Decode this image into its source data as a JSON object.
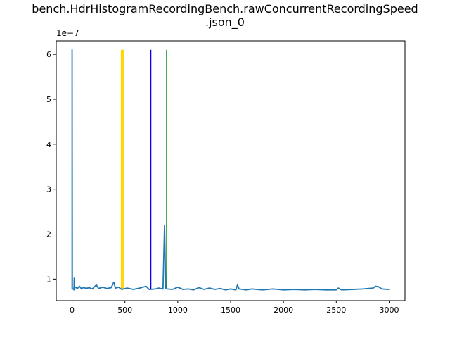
{
  "chart_data": {
    "type": "line",
    "title_line1": "bench.HdrHistogramRecordingBench.rawConcurrentRecordingSpeed",
    "title_line2": ".json_0",
    "xlabel": "",
    "ylabel": "",
    "y_offset_label": "1e−7",
    "xlim": [
      -150,
      3150
    ],
    "ylim": [
      0.52,
      6.3
    ],
    "x_ticks": [
      0,
      500,
      1000,
      1500,
      2000,
      2500,
      3000
    ],
    "y_ticks": [
      1,
      2,
      3,
      4,
      5,
      6
    ],
    "grid": false,
    "series": [
      {
        "color": "#1f77b4",
        "points": [
          [
            0,
            0.77
          ],
          [
            0,
            6.1
          ],
          [
            2,
            0.78
          ],
          [
            10,
            0.78
          ],
          [
            18,
            0.76
          ],
          [
            20,
            1.02
          ],
          [
            24,
            0.8
          ],
          [
            35,
            0.82
          ],
          [
            50,
            0.79
          ],
          [
            70,
            0.84
          ],
          [
            90,
            0.78
          ],
          [
            110,
            0.82
          ],
          [
            130,
            0.79
          ],
          [
            160,
            0.81
          ],
          [
            190,
            0.78
          ],
          [
            230,
            0.87
          ],
          [
            250,
            0.79
          ],
          [
            290,
            0.82
          ],
          [
            330,
            0.79
          ],
          [
            370,
            0.81
          ],
          [
            395,
            0.93
          ],
          [
            410,
            0.8
          ],
          [
            440,
            0.82
          ],
          [
            470,
            0.77
          ],
          [
            520,
            0.8
          ],
          [
            580,
            0.77
          ],
          [
            640,
            0.8
          ],
          [
            700,
            0.84
          ],
          [
            730,
            0.77
          ],
          [
            790,
            0.78
          ],
          [
            820,
            0.8
          ],
          [
            860,
            0.78
          ],
          [
            875,
            2.2
          ],
          [
            885,
            0.8
          ],
          [
            900,
            0.78
          ],
          [
            950,
            0.77
          ],
          [
            1000,
            0.82
          ],
          [
            1050,
            0.77
          ],
          [
            1100,
            0.78
          ],
          [
            1150,
            0.76
          ],
          [
            1200,
            0.81
          ],
          [
            1250,
            0.77
          ],
          [
            1300,
            0.8
          ],
          [
            1350,
            0.77
          ],
          [
            1400,
            0.79
          ],
          [
            1450,
            0.76
          ],
          [
            1500,
            0.78
          ],
          [
            1550,
            0.76
          ],
          [
            1565,
            0.87
          ],
          [
            1580,
            0.78
          ],
          [
            1650,
            0.76
          ],
          [
            1700,
            0.78
          ],
          [
            1800,
            0.76
          ],
          [
            1900,
            0.78
          ],
          [
            2000,
            0.76
          ],
          [
            2100,
            0.77
          ],
          [
            2200,
            0.76
          ],
          [
            2300,
            0.77
          ],
          [
            2400,
            0.76
          ],
          [
            2500,
            0.76
          ],
          [
            2520,
            0.8
          ],
          [
            2550,
            0.76
          ],
          [
            2650,
            0.77
          ],
          [
            2750,
            0.78
          ],
          [
            2800,
            0.79
          ],
          [
            2850,
            0.8
          ],
          [
            2870,
            0.84
          ],
          [
            2900,
            0.83
          ],
          [
            2930,
            0.78
          ],
          [
            3000,
            0.77
          ]
        ]
      }
    ],
    "vlines": [
      {
        "x": 470,
        "color": "#ffd700",
        "width": 2.5
      },
      {
        "x": 480,
        "color": "#ffd700",
        "width": 2.5
      },
      {
        "x": 745,
        "color": "#0000ff",
        "width": 1.5
      },
      {
        "x": 895,
        "color": "#008000",
        "width": 1.5
      }
    ],
    "vline_ymax": 6.1,
    "vline_ymin": 0.77
  }
}
